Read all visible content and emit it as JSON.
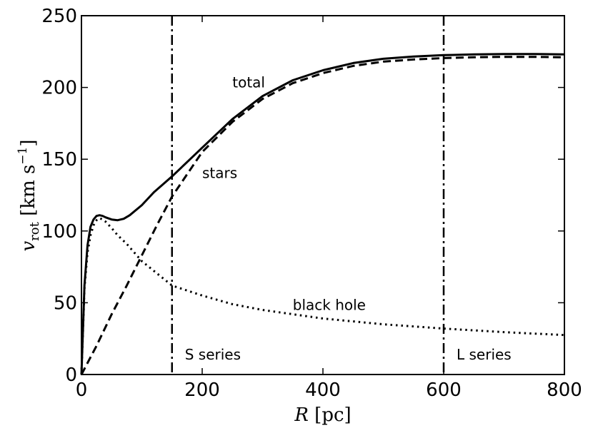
{
  "chart_data": {
    "type": "line",
    "xlabel": "R [pc]",
    "ylabel": "v_rot [km s^-1]",
    "xlim": [
      0,
      800
    ],
    "ylim": [
      0,
      250
    ],
    "xticks": [
      0,
      200,
      400,
      600,
      800
    ],
    "yticks": [
      0,
      50,
      100,
      150,
      200,
      250
    ],
    "grid": false,
    "series": [
      {
        "name": "total",
        "style": "solid",
        "x": [
          0,
          5,
          10,
          15,
          20,
          25,
          30,
          35,
          40,
          50,
          60,
          70,
          80,
          100,
          120,
          150,
          200,
          250,
          300,
          350,
          400,
          450,
          500,
          550,
          600,
          650,
          700,
          750,
          800
        ],
        "y": [
          0,
          62,
          90,
          103,
          108,
          110.5,
          111,
          110.5,
          109.5,
          108,
          107.5,
          108.5,
          111,
          118,
          127,
          138,
          158,
          178,
          194,
          205,
          212,
          217,
          220,
          221.5,
          222.5,
          223,
          223.3,
          223.3,
          223
        ]
      },
      {
        "name": "stars",
        "style": "dashed",
        "x": [
          0,
          25,
          50,
          75,
          100,
          125,
          150,
          200,
          250,
          300,
          350,
          400,
          450,
          500,
          550,
          600,
          650,
          700,
          750,
          800
        ],
        "y": [
          0,
          20,
          42,
          62,
          83,
          104,
          124,
          155,
          176,
          192,
          203,
          210,
          215,
          218,
          219.5,
          220.5,
          221,
          221.3,
          221.3,
          221
        ]
      },
      {
        "name": "black hole",
        "style": "dotted",
        "x": [
          0,
          5,
          10,
          15,
          20,
          25,
          30,
          35,
          40,
          50,
          60,
          75,
          100,
          150,
          200,
          250,
          300,
          350,
          400,
          500,
          600,
          700,
          800
        ],
        "y": [
          0,
          60,
          85,
          97,
          104,
          107.5,
          109,
          108,
          106.5,
          102,
          97,
          91,
          79,
          62,
          55,
          49,
          45,
          42,
          39,
          35,
          32,
          29.5,
          27.5
        ]
      }
    ],
    "vlines": [
      {
        "x": 150,
        "style": "dashdot",
        "label": "S series"
      },
      {
        "x": 600,
        "style": "dashdot",
        "label": "L series"
      }
    ],
    "annotations": [
      {
        "text": "total",
        "x": 250,
        "y": 200
      },
      {
        "text": "stars",
        "x": 200,
        "y": 137
      },
      {
        "text": "black hole",
        "x": 350,
        "y": 45
      }
    ]
  }
}
